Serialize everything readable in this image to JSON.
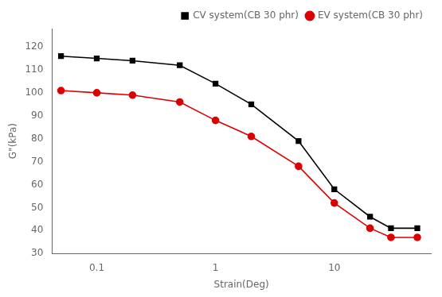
{
  "chart_data": {
    "type": "line",
    "x": [
      0.05,
      0.1,
      0.2,
      0.5,
      1.0,
      2.0,
      5.0,
      10.0,
      20.0,
      30.0,
      50.0
    ],
    "series": [
      {
        "name": "CV system(CB 30 phr)",
        "color": "#000000",
        "marker": "square",
        "values": [
          116,
          115,
          114,
          112,
          104,
          95,
          79,
          58,
          46,
          41,
          41
        ]
      },
      {
        "name": "EV system(CB 30 phr)",
        "color": "#dd0000",
        "marker": "circle",
        "values": [
          101,
          100,
          99,
          96,
          88,
          81,
          68,
          52,
          41,
          37,
          37
        ]
      }
    ],
    "x_label": "Strain(Deg)",
    "y_label": "G\"(kPa)",
    "xlim": [
      0.042,
      65
    ],
    "ylim": [
      30,
      128
    ],
    "xticks": [
      0.1,
      1,
      10
    ],
    "yticks": [
      30,
      40,
      50,
      60,
      70,
      80,
      90,
      100,
      110,
      120
    ],
    "log": "x",
    "grid": false,
    "legend": "upper right"
  }
}
